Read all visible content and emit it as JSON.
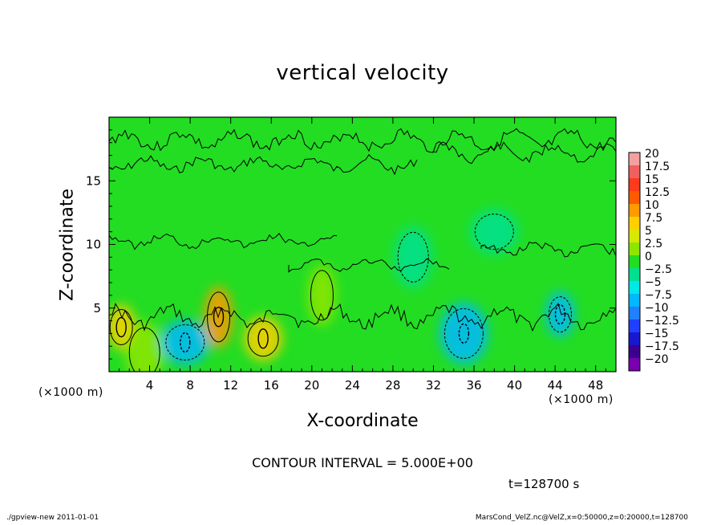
{
  "chart_data": {
    "type": "heatmap",
    "title": "vertical velocity",
    "xlabel": "X-coordinate",
    "ylabel": "Z-coordinate",
    "x_unit": "(×1000 m)",
    "y_unit": "(×1000 m)",
    "xlim": [
      0,
      50
    ],
    "ylim": [
      0,
      20
    ],
    "x_ticks": [
      4,
      8,
      12,
      16,
      20,
      24,
      28,
      32,
      36,
      40,
      44,
      48
    ],
    "y_ticks": [
      5,
      10,
      15
    ],
    "x_tick_labels": [
      "4",
      "8",
      "12",
      "16",
      "20",
      "24",
      "28",
      "32",
      "36",
      "40",
      "44",
      "48"
    ],
    "y_tick_labels": [
      "5",
      "10",
      "15"
    ],
    "colorbar": {
      "levels": [
        20,
        17.5,
        15,
        12.5,
        10,
        7.5,
        5,
        2.5,
        0,
        -2.5,
        -5,
        -7.5,
        -10,
        -12.5,
        -15,
        -17.5,
        -20
      ],
      "labels": [
        "20",
        "17.5",
        "15",
        "12.5",
        "10",
        "7.5",
        "5",
        "2.5",
        "0",
        "−2.5",
        "−5",
        "−7.5",
        "−10",
        "−12.5",
        "−15",
        "−17.5",
        "−20"
      ],
      "colors": [
        "#f4a0a0",
        "#f06060",
        "#ff3a1a",
        "#ff5a00",
        "#ff9a00",
        "#ffd000",
        "#d8e800",
        "#8ee600",
        "#22dd22",
        "#00e090",
        "#00e8e8",
        "#00b8ff",
        "#2080ff",
        "#2040ff",
        "#1818d0",
        "#3a0090",
        "#7800b0"
      ]
    },
    "features": [
      {
        "x": 1.2,
        "z": 3.5,
        "value": 7.5
      },
      {
        "x": 3.5,
        "z": 1.5,
        "value": 2.5
      },
      {
        "x": 7.5,
        "z": 2.3,
        "value": -7.5
      },
      {
        "x": 10.8,
        "z": 4.3,
        "value": 10
      },
      {
        "x": 15.2,
        "z": 2.6,
        "value": 7.5
      },
      {
        "x": 35.0,
        "z": 3.0,
        "value": -7.5
      },
      {
        "x": 44.5,
        "z": 4.5,
        "value": -7.5
      },
      {
        "x": 30.0,
        "z": 9.0,
        "value": -2.5
      },
      {
        "x": 38.0,
        "z": 11.0,
        "value": -2.5
      },
      {
        "x": 21.0,
        "z": 6.0,
        "value": 2.5
      }
    ],
    "contour_interval": "CONTOUR INTERVAL = 5.000E+00",
    "time_label": "t=128700 s",
    "colors": {
      "background_field": "#22dd22",
      "contour": "#000000"
    }
  },
  "footer": {
    "left": "./gpview-new   2011-01-01",
    "right": "MarsCond_VelZ.nc@VelZ,x=0:50000,z=0:20000,t=128700"
  }
}
